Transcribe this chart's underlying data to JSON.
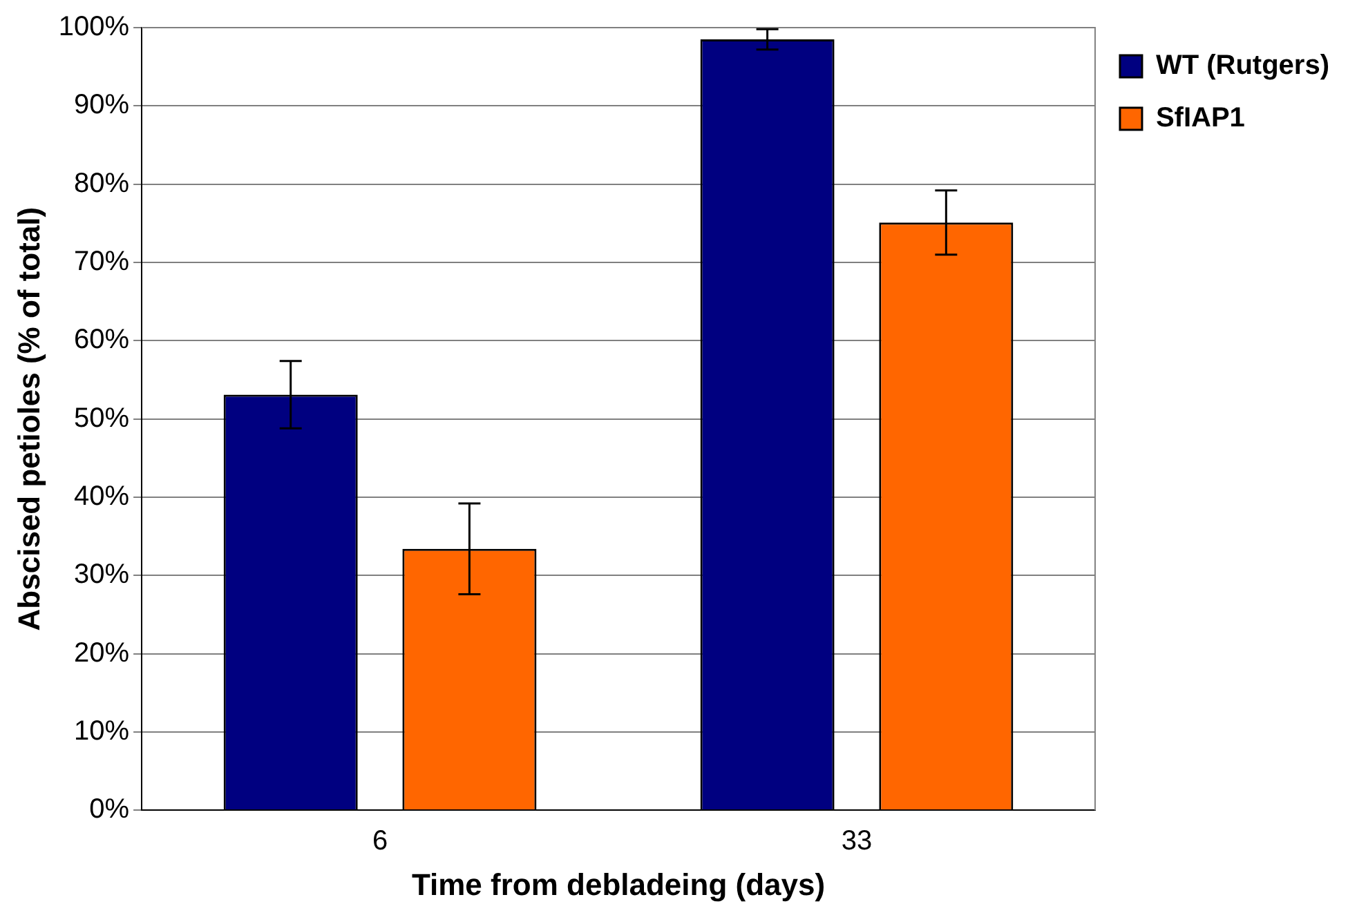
{
  "chart_data": {
    "type": "bar",
    "xlabel": "Time from debladeing (days)",
    "ylabel": "Abscised petioles (% of total)",
    "categories": [
      "6",
      "33"
    ],
    "series": [
      {
        "name": "WT (Rutgers)",
        "color": "#000080",
        "values": [
          53.1,
          98.5
        ],
        "errors": [
          4.3,
          1.3
        ]
      },
      {
        "name": "SfIAP1",
        "color": "#ff6600",
        "values": [
          33.4,
          75.1
        ],
        "errors": [
          5.8,
          4.1
        ]
      }
    ],
    "ylim": [
      0,
      100
    ],
    "yticks": [
      {
        "value": 0,
        "label": "0%"
      },
      {
        "value": 10,
        "label": "10%"
      },
      {
        "value": 20,
        "label": "20%"
      },
      {
        "value": 30,
        "label": "30%"
      },
      {
        "value": 40,
        "label": "40%"
      },
      {
        "value": 50,
        "label": "50%"
      },
      {
        "value": 60,
        "label": "60%"
      },
      {
        "value": 70,
        "label": "70%"
      },
      {
        "value": 80,
        "label": "80%"
      },
      {
        "value": 90,
        "label": "90%"
      },
      {
        "value": 100,
        "label": "100%"
      }
    ],
    "grid": "y",
    "legend": "top right"
  }
}
